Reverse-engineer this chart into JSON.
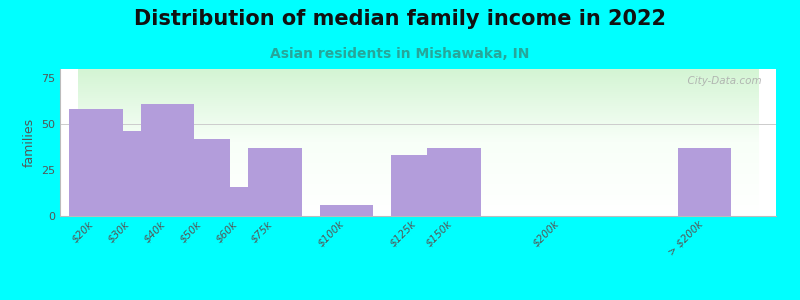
{
  "title": "Distribution of median family income in 2022",
  "subtitle": "Asian residents in Mishawaka, IN",
  "ylabel": "families",
  "bar_color": "#b39ddb",
  "bg_color": "#00ffff",
  "title_fontsize": 15,
  "subtitle_fontsize": 10,
  "subtitle_color": "#26a69a",
  "ylabel_fontsize": 9,
  "yticks": [
    0,
    25,
    50,
    75
  ],
  "ylim": [
    0,
    80
  ],
  "watermark": "  City-Data.com",
  "bar_positions": [
    0,
    1,
    2,
    3,
    4,
    5,
    7,
    9,
    10,
    13,
    17
  ],
  "bar_heights": [
    58,
    46,
    61,
    42,
    16,
    37,
    6,
    33,
    37,
    0,
    37
  ],
  "tick_labels": [
    "$20k",
    "$30k",
    "$40k",
    "$50k",
    "$60k",
    "$75k",
    "$100k",
    "$125k",
    "$150k",
    "$200k",
    "> $200k"
  ],
  "grid_color": "#cccccc",
  "plot_bg_colors": [
    "#e8f5e9",
    "#f9fff9",
    "#ffffff"
  ],
  "spine_color": "#bbbbbb"
}
